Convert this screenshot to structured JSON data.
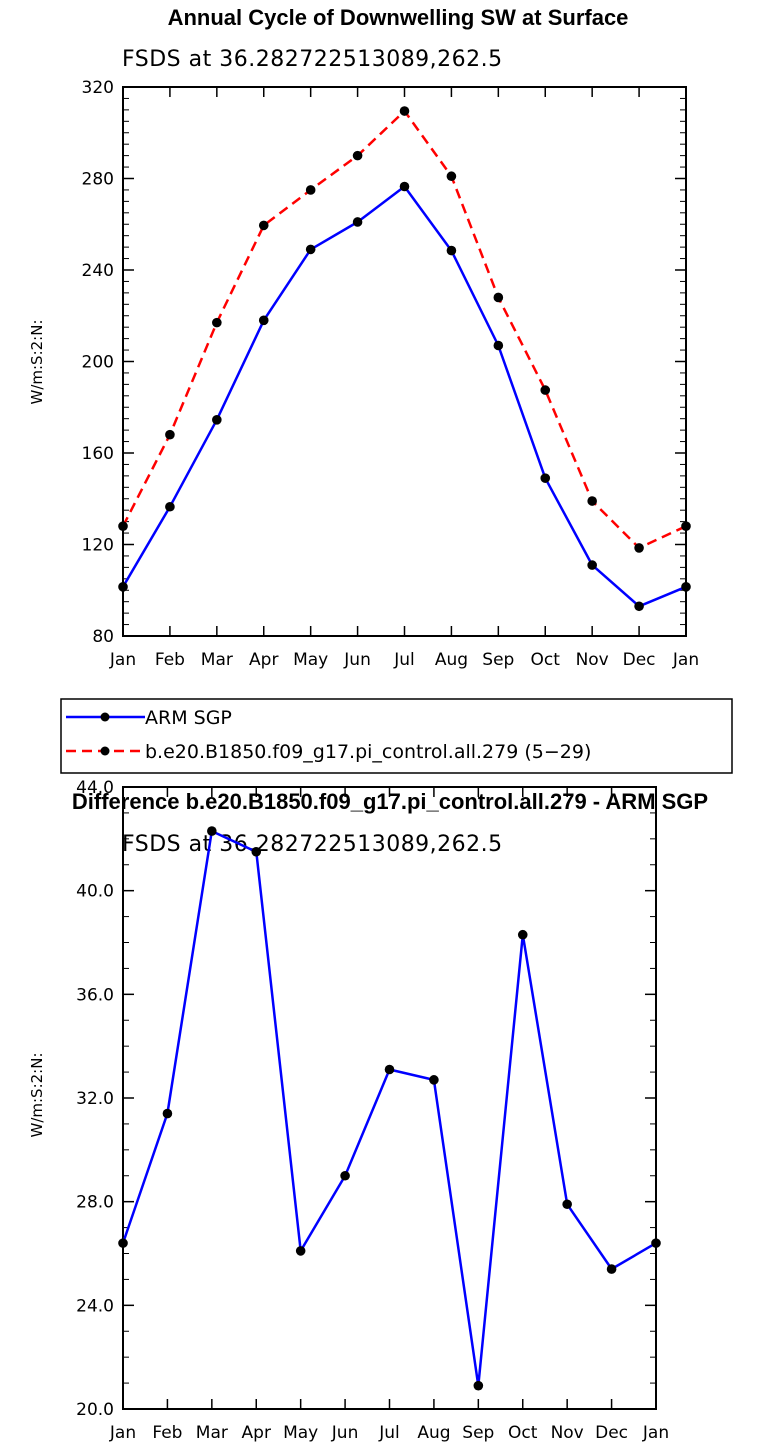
{
  "chart_data": [
    {
      "type": "line",
      "title": "Annual Cycle of Downwelling SW at Surface",
      "subtitle": "FSDS at 36.282722513089,262.5",
      "ylabel": "W/m:S:2:N:",
      "categories": [
        "Jan",
        "Feb",
        "Mar",
        "Apr",
        "May",
        "Jun",
        "Jul",
        "Aug",
        "Sep",
        "Oct",
        "Nov",
        "Dec",
        "Jan"
      ],
      "yticks": [
        "80",
        "120",
        "160",
        "200",
        "240",
        "280",
        "320"
      ],
      "ylim": [
        80,
        320
      ],
      "series": [
        {
          "name": "ARM SGP",
          "color": "#0000ff",
          "dash": "solid",
          "values": [
            101.5,
            136.5,
            174.5,
            218,
            249,
            261,
            276.5,
            248.5,
            207,
            149,
            111,
            93,
            101.5
          ]
        },
        {
          "name": "b.e20.B1850.f09_g17.pi_control.all.279 (5−29)",
          "color": "#ff0000",
          "dash": "dashed",
          "values": [
            128,
            168,
            217,
            259.5,
            275,
            290,
            309.5,
            281,
            228,
            187.5,
            139,
            118.5,
            128
          ]
        }
      ]
    },
    {
      "type": "line",
      "title": "Difference b.e20.B1850.f09_g17.pi_control.all.279 - ARM SGP",
      "subtitle": "FSDS at 36.282722513089,262.5",
      "ylabel": "W/m:S:2:N:",
      "categories": [
        "Jan",
        "Feb",
        "Mar",
        "Apr",
        "May",
        "Jun",
        "Jul",
        "Aug",
        "Sep",
        "Oct",
        "Nov",
        "Dec",
        "Jan"
      ],
      "yticks": [
        "20.0",
        "24.0",
        "28.0",
        "32.0",
        "36.0",
        "40.0",
        "44.0"
      ],
      "ylim": [
        20,
        44
      ],
      "series": [
        {
          "name": "Difference",
          "color": "#0000ff",
          "dash": "solid",
          "values": [
            26.4,
            31.4,
            42.3,
            41.5,
            26.1,
            29,
            33.1,
            32.7,
            20.9,
            38.3,
            27.9,
            25.4,
            26.4
          ]
        }
      ]
    }
  ]
}
